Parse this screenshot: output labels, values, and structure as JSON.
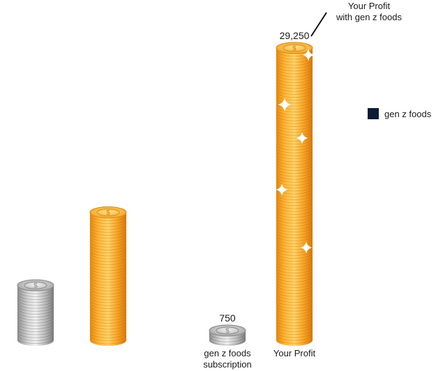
{
  "chart_data": {
    "type": "bar",
    "categories": [
      "",
      "",
      "gen z foods subscription",
      "Your Profit"
    ],
    "category_lines": [
      [],
      [],
      [
        "gen z foods",
        "subscription"
      ],
      [
        "Your Profit"
      ]
    ],
    "series": [
      {
        "values": [
          5500,
          12800,
          750,
          29250
        ]
      }
    ],
    "value_labels": [
      "",
      "",
      "750",
      "29,250"
    ],
    "bar_styles": [
      "silver",
      "gold",
      "silver",
      "gold"
    ],
    "ylim": [
      0,
      30000
    ],
    "grid": false,
    "legend": {
      "position": "right",
      "entries": [
        {
          "name": "gen z foods",
          "color": "#0d1b36"
        }
      ]
    },
    "annotation": {
      "lines": [
        "Your Profit",
        "with gen z foods"
      ],
      "target_index": 3
    }
  }
}
